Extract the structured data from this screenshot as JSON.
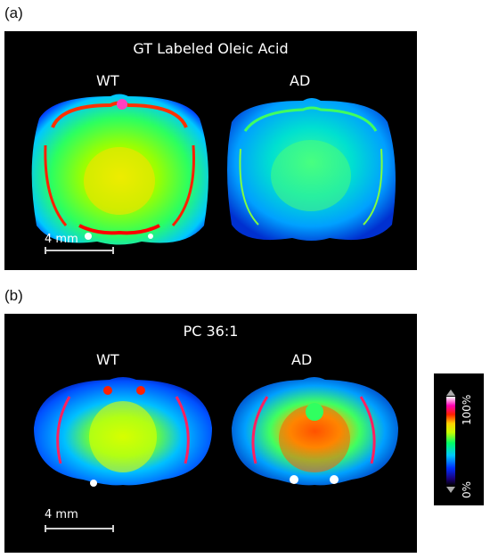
{
  "panel_a": {
    "letter": "(a)",
    "title": "GT Labeled Oleic Acid",
    "left_label": "WT",
    "right_label": "AD",
    "scale": "4 mm"
  },
  "panel_b": {
    "letter": "(b)",
    "title": "PC 36:1",
    "left_label": "WT",
    "right_label": "AD",
    "scale": "4 mm"
  },
  "colorbar": {
    "max_label": "100%",
    "min_label": "0%"
  }
}
